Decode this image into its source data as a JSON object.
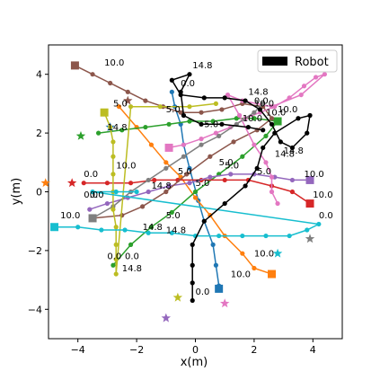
{
  "chart_data": {
    "type": "line",
    "title": "",
    "xlabel": "x(m)",
    "ylabel": "y(m)",
    "xlim": [
      -5,
      5
    ],
    "ylim": [
      -5,
      5
    ],
    "xticks": [
      -4,
      -2,
      0,
      2,
      4
    ],
    "yticks": [
      -4,
      -2,
      0,
      2,
      4
    ],
    "xtick_labels": [
      "−4",
      "−2",
      "0",
      "2",
      "4"
    ],
    "ytick_labels": [
      "−4",
      "−2",
      "0",
      "2",
      "4"
    ],
    "grid": false,
    "legend": {
      "placement": "top-right",
      "entries": [
        {
          "label": "Robot",
          "color": "#000000"
        }
      ]
    },
    "series": [
      {
        "color": "#1f77b4",
        "points": [
          [
            -0.8,
            3.4
          ],
          [
            -0.7,
            2.9
          ],
          [
            -0.5,
            2.3
          ],
          [
            -0.4,
            1.6
          ],
          [
            -0.2,
            0.8
          ],
          [
            0.1,
            -0.3
          ],
          [
            0.3,
            -1.0
          ],
          [
            0.6,
            -1.8
          ],
          [
            0.7,
            -2.5
          ],
          [
            0.8,
            -3.2
          ]
        ],
        "time_labels": [
          {
            "text": "0.0",
            "x": -0.5,
            "y": 3.6
          },
          {
            "text": "5.0",
            "x": -1.0,
            "y": 2.7
          },
          {
            "text": "10.0",
            "x": 1.2,
            "y": -2.9
          }
        ],
        "start": {
          "x": -2.9,
          "y": 2.2,
          "marker": "star"
        },
        "end": {
          "x": 0.8,
          "y": -3.3,
          "marker": "square"
        }
      },
      {
        "color": "#ff7f0e",
        "points": [
          [
            -2.6,
            2.9
          ],
          [
            -2.0,
            2.2
          ],
          [
            -1.5,
            1.6
          ],
          [
            -1.0,
            1.0
          ],
          [
            -0.5,
            0.5
          ],
          [
            0.0,
            -0.2
          ],
          [
            0.5,
            -0.8
          ],
          [
            1.0,
            -1.5
          ],
          [
            1.6,
            -2.1
          ],
          [
            2.0,
            -2.6
          ],
          [
            2.6,
            -2.8
          ]
        ],
        "time_labels": [
          {
            "text": "5.0",
            "x": -0.6,
            "y": 0.6
          },
          {
            "text": "10.0",
            "x": 2.0,
            "y": -2.2
          }
        ],
        "start": {
          "x": -5.1,
          "y": 0.3,
          "marker": "star"
        },
        "end": {
          "x": 2.6,
          "y": -2.8,
          "marker": "square"
        }
      },
      {
        "color": "#2ca02c",
        "points": [
          [
            -3.3,
            2.0
          ],
          [
            -2.5,
            2.1
          ],
          [
            -1.7,
            2.2
          ],
          [
            -0.9,
            2.3
          ],
          [
            -0.2,
            2.4
          ],
          [
            0.6,
            2.4
          ],
          [
            1.4,
            2.5
          ],
          [
            2.0,
            2.5
          ],
          [
            2.8,
            2.4
          ],
          [
            2.4,
            1.9
          ],
          [
            1.6,
            1.2
          ],
          [
            0.8,
            0.6
          ],
          [
            0.0,
            0.0
          ],
          [
            -0.8,
            -0.7
          ],
          [
            -1.5,
            -1.2
          ],
          [
            -2.2,
            -1.8
          ],
          [
            -2.8,
            -2.5
          ]
        ],
        "time_labels": [
          {
            "text": "14.8",
            "x": -3.0,
            "y": 2.1
          },
          {
            "text": "5.0",
            "x": 0.3,
            "y": 2.2
          },
          {
            "text": "10.0",
            "x": 2.4,
            "y": 2.6
          },
          {
            "text": "14.8",
            "x": -1.0,
            "y": -1.4
          },
          {
            "text": "0.0",
            "x": -2.4,
            "y": -2.3
          }
        ],
        "start": {
          "x": -3.9,
          "y": 1.9,
          "marker": "star"
        },
        "end": {
          "x": 2.8,
          "y": 2.4,
          "marker": "square"
        }
      },
      {
        "color": "#d62728",
        "points": [
          [
            -3.8,
            0.3
          ],
          [
            -3.0,
            0.3
          ],
          [
            -2.2,
            0.3
          ],
          [
            -1.4,
            0.4
          ],
          [
            -0.6,
            0.4
          ],
          [
            0.2,
            0.4
          ],
          [
            1.0,
            0.4
          ],
          [
            1.8,
            0.4
          ],
          [
            2.6,
            0.2
          ],
          [
            3.3,
            0.0
          ],
          [
            3.9,
            -0.4
          ]
        ],
        "time_labels": [
          {
            "text": "0.0",
            "x": -3.8,
            "y": 0.5
          },
          {
            "text": "5.0",
            "x": 0.0,
            "y": 0.2
          },
          {
            "text": "10.0",
            "x": 4.0,
            "y": -0.2
          }
        ],
        "start": {
          "x": -4.2,
          "y": 0.3,
          "marker": "star"
        },
        "end": {
          "x": 3.9,
          "y": -0.4,
          "marker": "square"
        }
      },
      {
        "color": "#9467bd",
        "points": [
          [
            -3.6,
            -0.6
          ],
          [
            -3.0,
            -0.4
          ],
          [
            -2.3,
            -0.2
          ],
          [
            -1.6,
            0.0
          ],
          [
            -0.9,
            0.2
          ],
          [
            -0.2,
            0.3
          ],
          [
            0.5,
            0.5
          ],
          [
            1.2,
            0.6
          ],
          [
            2.0,
            0.6
          ],
          [
            2.7,
            0.5
          ],
          [
            3.3,
            0.4
          ],
          [
            3.9,
            0.4
          ]
        ],
        "time_labels": [
          {
            "text": "0.0",
            "x": -3.6,
            "y": -0.2
          },
          {
            "text": "10.0",
            "x": 3.7,
            "y": 0.5
          }
        ],
        "start": {
          "x": -1.0,
          "y": -4.3,
          "marker": "star"
        },
        "end": {
          "x": 3.9,
          "y": 0.4,
          "marker": "square"
        }
      },
      {
        "color": "#8c564b",
        "points": [
          [
            -4.1,
            4.3
          ],
          [
            -3.5,
            4.0
          ],
          [
            -2.9,
            3.7
          ],
          [
            -2.3,
            3.4
          ],
          [
            -1.7,
            3.1
          ],
          [
            -1.1,
            2.9
          ],
          [
            -0.5,
            2.7
          ],
          [
            0.2,
            2.7
          ],
          [
            0.9,
            2.8
          ],
          [
            1.6,
            3.0
          ],
          [
            2.3,
            2.9
          ],
          [
            2.6,
            2.5
          ],
          [
            2.1,
            2.1
          ],
          [
            1.3,
            1.7
          ],
          [
            0.5,
            1.2
          ],
          [
            -0.3,
            0.6
          ],
          [
            -1.0,
            0.0
          ],
          [
            -1.8,
            -0.5
          ],
          [
            -2.5,
            -0.8
          ],
          [
            -3.5,
            -0.9
          ]
        ],
        "time_labels": [
          {
            "text": "10.0",
            "x": -3.1,
            "y": 4.3
          },
          {
            "text": "14.8",
            "x": 1.8,
            "y": 3.3
          },
          {
            "text": "0.0",
            "x": 2.0,
            "y": 3.0
          },
          {
            "text": "5.0",
            "x": -1.0,
            "y": -0.9
          }
        ],
        "start": {
          "x": -2.3,
          "y": 3.1,
          "marker": "star"
        },
        "end": {
          "x": -4.1,
          "y": 4.3,
          "marker": "square"
        }
      },
      {
        "color": "#e377c2",
        "points": [
          [
            -0.9,
            1.5
          ],
          [
            -0.4,
            1.6
          ],
          [
            0.2,
            1.8
          ],
          [
            0.7,
            2.0
          ],
          [
            1.2,
            2.2
          ],
          [
            1.7,
            2.5
          ],
          [
            2.2,
            2.7
          ],
          [
            2.7,
            2.9
          ],
          [
            3.2,
            3.2
          ],
          [
            3.7,
            3.6
          ],
          [
            4.1,
            3.9
          ],
          [
            4.4,
            4.0
          ],
          [
            3.6,
            3.3
          ],
          [
            2.6,
            2.9
          ],
          [
            1.6,
            3.1
          ],
          [
            1.1,
            3.3
          ],
          [
            1.5,
            2.6
          ],
          [
            2.0,
            1.6
          ],
          [
            2.4,
            1.0
          ],
          [
            2.6,
            0.5
          ],
          [
            2.6,
            0.0
          ],
          [
            2.8,
            -0.4
          ]
        ],
        "time_labels": [
          {
            "text": "10.0",
            "x": 2.8,
            "y": 2.7
          },
          {
            "text": "14.8",
            "x": 2.7,
            "y": 1.2
          },
          {
            "text": "5.0",
            "x": 2.1,
            "y": 0.6
          }
        ],
        "start": {
          "x": 1.0,
          "y": -3.8,
          "marker": "star"
        },
        "end": {
          "x": -0.9,
          "y": 1.5,
          "marker": "square"
        }
      },
      {
        "color": "#7f7f7f",
        "points": [
          [
            -3.5,
            -0.9
          ],
          [
            -2.8,
            -0.5
          ],
          [
            -2.2,
            0.0
          ],
          [
            -1.6,
            0.4
          ],
          [
            -1.0,
            0.8
          ],
          [
            -0.4,
            1.2
          ],
          [
            0.2,
            1.6
          ],
          [
            0.8,
            1.9
          ],
          [
            1.4,
            2.3
          ],
          [
            2.0,
            2.7
          ],
          [
            2.3,
            3.0
          ]
        ],
        "time_labels": [
          {
            "text": "14.8",
            "x": -1.5,
            "y": 0.1
          },
          {
            "text": "5.0",
            "x": 0.8,
            "y": 0.9
          },
          {
            "text": "10.0",
            "x": 1.6,
            "y": 2.4
          }
        ],
        "start": {
          "x": 3.9,
          "y": -1.6,
          "marker": "star"
        },
        "end": {
          "x": -3.5,
          "y": -0.9,
          "marker": "square"
        }
      },
      {
        "color": "#bcbd22",
        "points": [
          [
            -3.1,
            2.7
          ],
          [
            -2.9,
            2.2
          ],
          [
            -2.8,
            1.7
          ],
          [
            -2.8,
            1.2
          ],
          [
            -2.8,
            0.6
          ],
          [
            -2.8,
            0.0
          ],
          [
            -2.8,
            -0.6
          ],
          [
            -2.7,
            -1.2
          ],
          [
            -2.7,
            -1.8
          ],
          [
            -2.7,
            -2.3
          ],
          [
            -2.7,
            -2.8
          ],
          [
            -2.2,
            2.9
          ],
          [
            -1.2,
            2.9
          ],
          [
            -0.2,
            2.9
          ],
          [
            0.7,
            3.0
          ]
        ],
        "time_labels": [
          {
            "text": "5.0",
            "x": -2.8,
            "y": 2.9
          },
          {
            "text": "10.0",
            "x": -2.7,
            "y": 0.8
          },
          {
            "text": "14.8",
            "x": -2.5,
            "y": -2.7
          },
          {
            "text": "0.0",
            "x": -3.0,
            "y": -2.3
          }
        ],
        "start": {
          "x": -0.6,
          "y": -3.6,
          "marker": "star"
        },
        "end": {
          "x": -3.1,
          "y": 2.7,
          "marker": "square"
        }
      },
      {
        "color": "#17becf",
        "points": [
          [
            -4.8,
            -1.2
          ],
          [
            -4.0,
            -1.2
          ],
          [
            -3.2,
            -1.3
          ],
          [
            -2.4,
            -1.3
          ],
          [
            -1.6,
            -1.4
          ],
          [
            -0.8,
            -1.4
          ],
          [
            0.0,
            -1.5
          ],
          [
            0.8,
            -1.5
          ],
          [
            1.6,
            -1.5
          ],
          [
            2.4,
            -1.5
          ],
          [
            3.2,
            -1.5
          ],
          [
            3.8,
            -1.3
          ],
          [
            4.2,
            -1.1
          ],
          [
            -3.5,
            0.0
          ],
          [
            -2.7,
            0.0
          ],
          [
            -2.0,
            0.0
          ]
        ],
        "time_labels": [
          {
            "text": "10.0",
            "x": -4.6,
            "y": -0.9
          },
          {
            "text": "0.0",
            "x": -3.8,
            "y": -0.2
          },
          {
            "text": "14.8",
            "x": -1.8,
            "y": -1.3
          },
          {
            "text": "0.0",
            "x": 4.2,
            "y": -0.9
          }
        ],
        "start": {
          "x": 2.8,
          "y": -2.1,
          "marker": "star"
        },
        "end": {
          "x": -4.8,
          "y": -1.2,
          "marker": "square"
        }
      },
      {
        "color": "#000000",
        "name": "Robot",
        "points": [
          [
            -0.1,
            -3.7
          ],
          [
            -0.1,
            -3.1
          ],
          [
            -0.1,
            -2.5
          ],
          [
            -0.1,
            -1.8
          ],
          [
            0.3,
            -1.0
          ],
          [
            1.0,
            -0.4
          ],
          [
            1.7,
            0.2
          ],
          [
            2.1,
            0.8
          ],
          [
            2.3,
            1.5
          ],
          [
            2.7,
            2.0
          ],
          [
            3.5,
            2.5
          ],
          [
            3.9,
            2.6
          ],
          [
            3.8,
            2.0
          ],
          [
            3.3,
            1.5
          ],
          [
            2.9,
            1.7
          ],
          [
            2.6,
            2.3
          ],
          [
            2.2,
            2.8
          ],
          [
            1.7,
            3.1
          ],
          [
            1.0,
            3.2
          ],
          [
            0.3,
            3.2
          ],
          [
            -0.5,
            3.3
          ],
          [
            -0.8,
            3.8
          ],
          [
            -0.2,
            4.0
          ],
          [
            -0.5,
            3.4
          ],
          [
            -0.4,
            2.6
          ],
          [
            0.2,
            2.3
          ],
          [
            0.9,
            2.3
          ],
          [
            1.8,
            2.2
          ],
          [
            2.3,
            2.1
          ]
        ],
        "time_labels": [
          {
            "text": "0.0",
            "x": 0.0,
            "y": -3.5
          },
          {
            "text": "14.8",
            "x": -0.1,
            "y": 4.2
          },
          {
            "text": "5.0",
            "x": 1.0,
            "y": 0.8
          },
          {
            "text": "10.0",
            "x": 2.0,
            "y": 2.9
          },
          {
            "text": "14.8",
            "x": 3.0,
            "y": 1.3
          }
        ],
        "start": {
          "x": -0.1,
          "y": -3.7,
          "marker": "none"
        },
        "end": {
          "x": 2.3,
          "y": 2.1,
          "marker": "none"
        }
      }
    ]
  }
}
